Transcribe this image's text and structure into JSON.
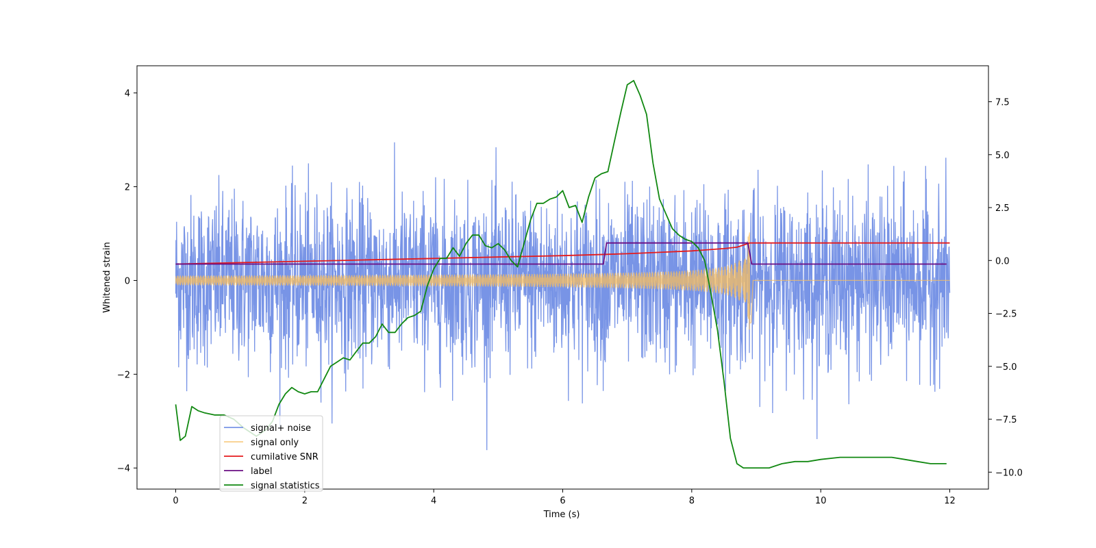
{
  "chart_data": {
    "type": "line",
    "title": "",
    "xlabel": "Time (s)",
    "ylabel": "Whitened strain",
    "y2label": "",
    "xlim": [
      -0.6,
      12.6
    ],
    "ylim": [
      -4.45,
      4.58
    ],
    "y2lim": [
      -10.8,
      9.2
    ],
    "xticks": [
      "0",
      "2",
      "4",
      "6",
      "8",
      "10",
      "12"
    ],
    "yticks": [
      "−4",
      "−2",
      "0",
      "2",
      "4"
    ],
    "y2ticks": [
      "−10.0",
      "−7.5",
      "−5.0",
      "−2.5",
      "0.0",
      "2.5",
      "5.0",
      "7.5"
    ],
    "grid": false,
    "legend_position": "lower-left",
    "series": [
      {
        "name": "signal+ noise",
        "color": "#7894e6",
        "axis": "left",
        "kind": "noise",
        "sigma": 0.9,
        "x_range": [
          0,
          12
        ]
      },
      {
        "name": "signal only",
        "color": "#f7be5f",
        "axis": "left",
        "kind": "chirp",
        "x_range": [
          0,
          12
        ],
        "amplitude_start": 0.04,
        "amplitude_peak": 1.05,
        "merger_time": 8.9
      },
      {
        "name": "cumilative SNR",
        "color": "#e41a1c",
        "axis": "left",
        "x": [
          0,
          1,
          2,
          3,
          4,
          5,
          6,
          7,
          7.5,
          8,
          8.5,
          8.7,
          8.9,
          12
        ],
        "y": [
          0.35,
          0.38,
          0.41,
          0.44,
          0.47,
          0.5,
          0.53,
          0.57,
          0.6,
          0.63,
          0.68,
          0.71,
          0.8,
          0.8
        ]
      },
      {
        "name": "label",
        "color": "#6a0d83",
        "axis": "left",
        "x": [
          0,
          6.63,
          6.68,
          8.87,
          8.93,
          11.95
        ],
        "y": [
          0.35,
          0.35,
          0.8,
          0.8,
          0.35,
          0.35
        ]
      },
      {
        "name": "signal statistics",
        "color": "#118811",
        "axis": "right",
        "x": [
          0,
          0.07,
          0.15,
          0.25,
          0.35,
          0.45,
          0.6,
          0.75,
          0.9,
          1.05,
          1.25,
          1.4,
          1.5,
          1.6,
          1.7,
          1.8,
          1.9,
          2.0,
          2.1,
          2.2,
          2.3,
          2.4,
          2.5,
          2.6,
          2.7,
          2.8,
          2.9,
          3.0,
          3.1,
          3.2,
          3.3,
          3.4,
          3.5,
          3.6,
          3.7,
          3.8,
          3.9,
          4.0,
          4.1,
          4.2,
          4.3,
          4.4,
          4.5,
          4.6,
          4.7,
          4.8,
          4.9,
          5.0,
          5.1,
          5.2,
          5.3,
          5.4,
          5.5,
          5.6,
          5.7,
          5.8,
          5.9,
          6.0,
          6.1,
          6.2,
          6.3,
          6.4,
          6.5,
          6.6,
          6.7,
          6.8,
          6.9,
          7.0,
          7.1,
          7.2,
          7.3,
          7.4,
          7.5,
          7.6,
          7.7,
          7.8,
          7.9,
          8.0,
          8.1,
          8.2,
          8.3,
          8.4,
          8.5,
          8.6,
          8.7,
          8.8,
          8.9,
          9.0,
          9.1,
          9.2,
          9.4,
          9.6,
          9.8,
          10.0,
          10.3,
          10.6,
          10.9,
          11.1,
          11.3,
          11.5,
          11.7,
          11.95
        ],
        "y": [
          -6.8,
          -8.5,
          -8.3,
          -6.9,
          -7.1,
          -7.2,
          -7.3,
          -7.3,
          -7.5,
          -7.9,
          -8.3,
          -8.0,
          -7.6,
          -6.8,
          -6.3,
          -6.0,
          -6.2,
          -6.3,
          -6.2,
          -6.2,
          -5.6,
          -5.0,
          -4.8,
          -4.6,
          -4.7,
          -4.3,
          -3.9,
          -3.9,
          -3.6,
          -3.0,
          -3.4,
          -3.4,
          -3.0,
          -2.7,
          -2.6,
          -2.4,
          -1.2,
          -0.4,
          0.1,
          0.1,
          0.6,
          0.2,
          0.8,
          1.2,
          1.2,
          0.7,
          0.6,
          0.8,
          0.5,
          0.0,
          -0.3,
          0.8,
          1.9,
          2.7,
          2.7,
          2.9,
          3.0,
          3.3,
          2.5,
          2.6,
          1.8,
          3.0,
          3.9,
          4.1,
          4.2,
          5.6,
          7.0,
          8.3,
          8.5,
          7.8,
          6.9,
          4.6,
          2.9,
          2.2,
          1.5,
          1.2,
          1.0,
          0.9,
          0.6,
          0.0,
          -1.6,
          -3.3,
          -5.7,
          -8.4,
          -9.6,
          -9.8,
          -9.8,
          -9.8,
          -9.8,
          -9.8,
          -9.6,
          -9.5,
          -9.5,
          -9.4,
          -9.3,
          -9.3,
          -9.3,
          -9.3,
          -9.4,
          -9.5,
          -9.6,
          -9.6
        ]
      }
    ]
  }
}
